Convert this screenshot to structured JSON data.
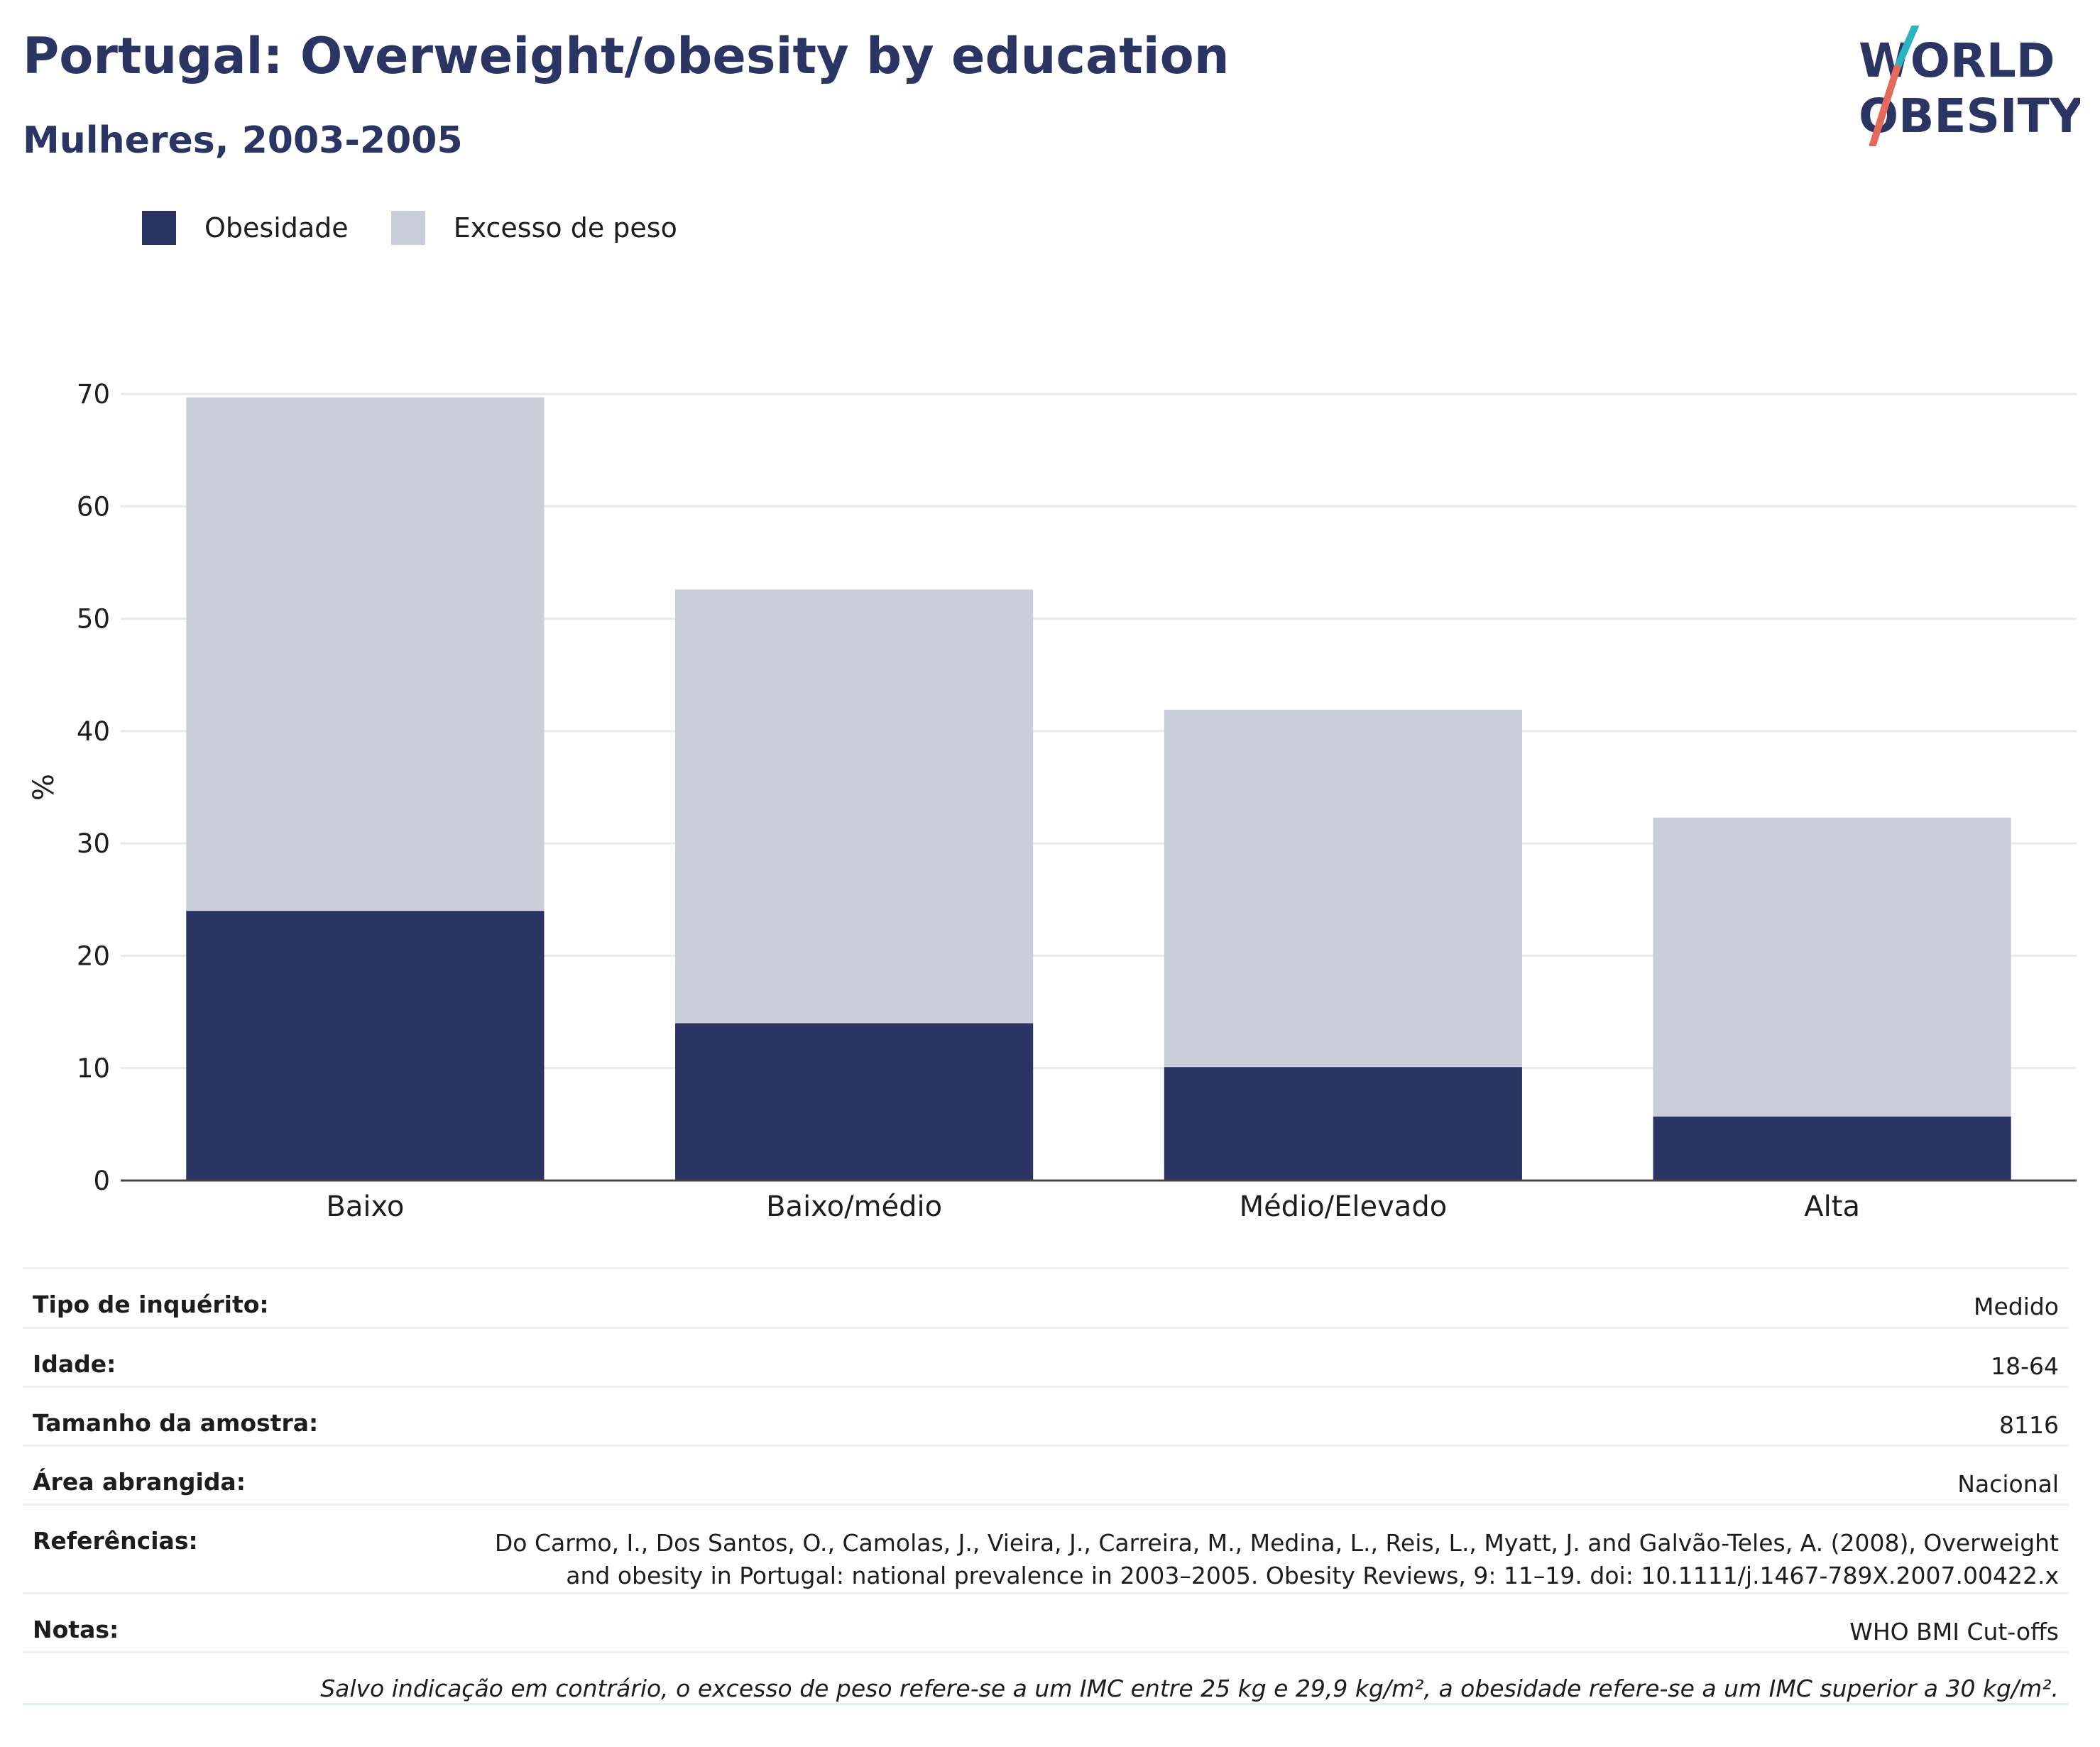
{
  "header": {
    "title": "Portugal: Overweight/obesity by education",
    "subtitle": "Mulheres, 2003-2005"
  },
  "logo": {
    "line1": "WORLD",
    "line2": "OBESITY",
    "accent_top": "#2bb3c0",
    "accent_bottom": "#e56a5a"
  },
  "colors": {
    "obesity": "#2a3563",
    "overweight": "#cbcdd9",
    "grid": "#e8e9ec",
    "axis": "#444444"
  },
  "legend": {
    "items": [
      {
        "label": "Obesidade"
      },
      {
        "label": "Excesso de peso"
      }
    ]
  },
  "chart_data": {
    "type": "bar",
    "stacked": true,
    "categories": [
      "Baixo",
      "Baixo/médio",
      "Médio/Elevado",
      "Alta"
    ],
    "series": [
      {
        "name": "Obesidade",
        "values": [
          24.0,
          14.0,
          10.1,
          5.7
        ]
      },
      {
        "name": "Excesso de peso",
        "values": [
          45.7,
          38.6,
          31.8,
          26.6
        ]
      }
    ],
    "totals": [
      69.7,
      52.6,
      41.9,
      32.3
    ],
    "ylabel": "%",
    "ylim": [
      0,
      70
    ],
    "yticks": [
      0,
      10,
      20,
      30,
      40,
      50,
      60,
      70
    ],
    "grid": true,
    "legend_position": "top-left"
  },
  "meta": {
    "rows": [
      {
        "label": "Tipo de inquérito:",
        "value": "Medido"
      },
      {
        "label": "Idade:",
        "value": "18-64"
      },
      {
        "label": "Tamanho da amostra:",
        "value": "8116"
      },
      {
        "label": "Área abrangida:",
        "value": "Nacional"
      },
      {
        "label": "Referências:",
        "value_line1": "Do Carmo, I., Dos Santos, O., Camolas, J., Vieira, J., Carreira, M., Medina, L., Reis, L., Myatt, J. and Galvão-Teles, A. (2008), Overweight",
        "value_line2": "and obesity in Portugal: national prevalence in 2003–2005. Obesity Reviews, 9: 11–19. doi: 10.1111/j.1467-789X.2007.00422.x"
      },
      {
        "label": "Notas:",
        "value": "WHO BMI Cut-offs"
      }
    ],
    "footnote": "Salvo indicação em contrário, o excesso de peso refere-se a um IMC entre 25 kg e 29,9 kg/m², a obesidade refere-se a um IMC superior a 30 kg/m²."
  }
}
